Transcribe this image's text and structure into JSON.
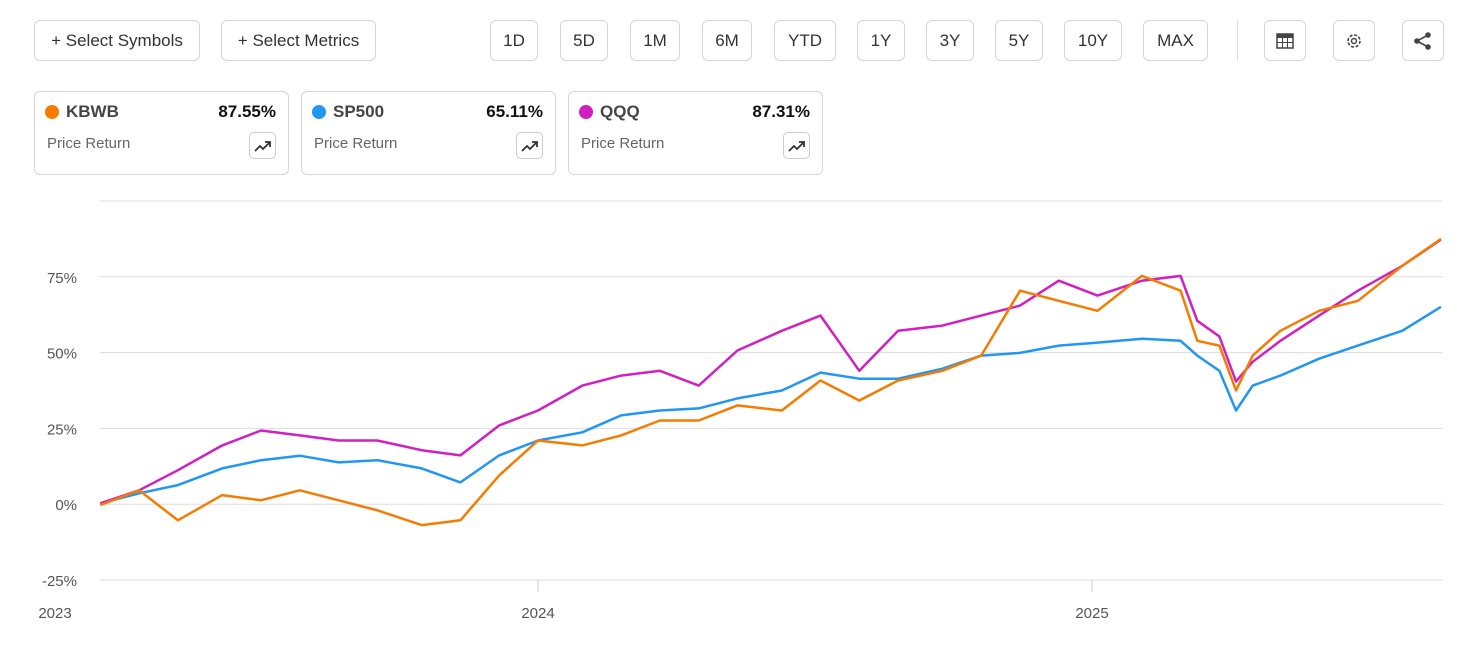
{
  "toolbar": {
    "select_symbols": "+ Select Symbols",
    "select_metrics": "+ Select Metrics",
    "ranges": [
      "1D",
      "5D",
      "1M",
      "6M",
      "YTD",
      "1Y",
      "3Y",
      "5Y",
      "10Y",
      "MAX"
    ]
  },
  "cards": [
    {
      "symbol": "KBWB",
      "value": "87.55%",
      "metric": "Price Return",
      "color": "#f57c00"
    },
    {
      "symbol": "SP500",
      "value": "65.11%",
      "metric": "Price Return",
      "color": "#2196f3"
    },
    {
      "symbol": "QQQ",
      "value": "87.31%",
      "metric": "Price Return",
      "color": "#d020c0"
    }
  ],
  "chart_data": {
    "type": "line",
    "title": "",
    "xlabel": "",
    "ylabel": "",
    "ylim": [
      -25,
      100
    ],
    "xlim": [
      2023.21,
      2025.63
    ],
    "yticks": [
      {
        "v": 75,
        "label": "75%"
      },
      {
        "v": 50,
        "label": "50%"
      },
      {
        "v": 25,
        "label": "25%"
      },
      {
        "v": 0,
        "label": "0%"
      },
      {
        "v": -25,
        "label": "-25%"
      }
    ],
    "xticks": [
      {
        "v": 2023.0,
        "label": "2023"
      },
      {
        "v": 2024.0,
        "label": "2024"
      },
      {
        "v": 2025.0,
        "label": "2025"
      }
    ],
    "x": [
      2023.21,
      2023.28,
      2023.35,
      2023.43,
      2023.5,
      2023.57,
      2023.64,
      2023.71,
      2023.79,
      2023.86,
      2023.93,
      2024.0,
      2024.08,
      2024.15,
      2024.22,
      2024.29,
      2024.36,
      2024.44,
      2024.51,
      2024.58,
      2024.65,
      2024.73,
      2024.8,
      2024.87,
      2024.94,
      2025.01,
      2025.09,
      2025.16,
      2025.19,
      2025.23,
      2025.26,
      2025.29,
      2025.34,
      2025.41,
      2025.48,
      2025.56,
      2025.63
    ],
    "series": [
      {
        "name": "SP500",
        "color": "#2196f3",
        "values": [
          0.3,
          3.6,
          6.3,
          11.8,
          14.5,
          16,
          13.8,
          14.5,
          11.8,
          7.2,
          16.1,
          21,
          23.7,
          29.3,
          30.9,
          31.6,
          34.9,
          37.5,
          43.4,
          41.4,
          41.4,
          44.7,
          49,
          49.9,
          52.3,
          53.3,
          54.6,
          53.9,
          49,
          44,
          30.9,
          39.1,
          42.4,
          48,
          52.3,
          57.2,
          65.1
        ]
      },
      {
        "name": "QQQ",
        "color": "#d020c0",
        "values": [
          0.3,
          4.6,
          11.2,
          19.4,
          24.3,
          22.7,
          21,
          21,
          17.8,
          16.1,
          26,
          30.9,
          39.1,
          42.4,
          44,
          39.1,
          50.7,
          57.2,
          62.2,
          44,
          57.2,
          58.9,
          62.2,
          65.5,
          73.7,
          68.8,
          73.7,
          75.3,
          60.5,
          55.3,
          40.5,
          47,
          53.9,
          62.2,
          70.4,
          78.6,
          87.3
        ]
      },
      {
        "name": "KBWB",
        "color": "#f57c00",
        "values": [
          -0.3,
          4.6,
          -5.3,
          3,
          1.3,
          4.6,
          1.3,
          -2,
          -6.9,
          -5.3,
          9.5,
          21,
          19.4,
          22.7,
          27.6,
          27.6,
          32.6,
          30.9,
          40.8,
          34.2,
          40.8,
          44,
          49,
          70.4,
          67.1,
          63.8,
          75.3,
          70.4,
          53.9,
          52.3,
          37.5,
          49,
          57.2,
          63.8,
          67.1,
          78.6,
          87.5
        ]
      }
    ]
  }
}
